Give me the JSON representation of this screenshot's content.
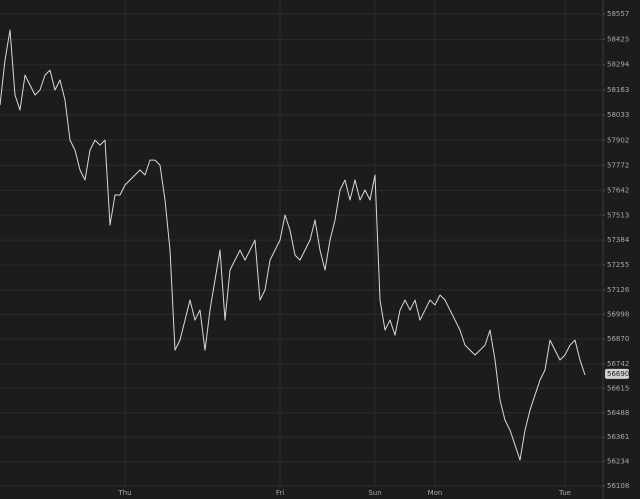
{
  "chart_data": {
    "type": "line",
    "categories": [
      null,
      null,
      null,
      null,
      null,
      null,
      null,
      null,
      null,
      null,
      null,
      null,
      null,
      null,
      null,
      null,
      null,
      null,
      null,
      null,
      null,
      null,
      null,
      null,
      null,
      "Thu",
      null,
      null,
      null,
      null,
      null,
      null,
      null,
      null,
      null,
      null,
      null,
      null,
      null,
      null,
      null,
      null,
      null,
      null,
      null,
      null,
      null,
      null,
      null,
      null,
      null,
      null,
      null,
      null,
      null,
      null,
      "Fri",
      null,
      null,
      null,
      null,
      null,
      null,
      null,
      null,
      null,
      null,
      null,
      null,
      null,
      null,
      null,
      null,
      null,
      null,
      "Sun",
      null,
      null,
      null,
      null,
      null,
      null,
      null,
      null,
      null,
      null,
      null,
      "Mon",
      null,
      null,
      null,
      null,
      null,
      null,
      null,
      null,
      null,
      null,
      null,
      null,
      null,
      null,
      null,
      null,
      null,
      null,
      null,
      null,
      null,
      null,
      null,
      null,
      null,
      "Tue",
      null,
      null,
      null,
      null
    ],
    "series": [
      {
        "color": "#d9d9d9",
        "values": [
          58085,
          58318,
          58474,
          58137,
          58059,
          58240,
          58189,
          58137,
          58163,
          58240,
          58266,
          58163,
          58215,
          58111,
          57903,
          57851,
          57748,
          57696,
          57851,
          57903,
          57877,
          57903,
          57462,
          57618,
          57618,
          57670,
          57696,
          57722,
          57748,
          57722,
          57799,
          57799,
          57773,
          57592,
          57332,
          56813,
          56865,
          56969,
          57073,
          56969,
          57021,
          56813,
          57021,
          57177,
          57332,
          56969,
          57229,
          57280,
          57332,
          57280,
          57332,
          57384,
          57073,
          57125,
          57280,
          57332,
          57384,
          57514,
          57436,
          57306,
          57280,
          57332,
          57384,
          57488,
          57332,
          57229,
          57384,
          57488,
          57644,
          57696,
          57592,
          57696,
          57592,
          57644,
          57592,
          57722,
          57073,
          56917,
          56969,
          56891,
          57021,
          57073,
          57021,
          57073,
          56969,
          57021,
          57073,
          57047,
          57099,
          57073,
          57021,
          56969,
          56917,
          56839,
          56813,
          56788,
          56813,
          56839,
          56917,
          56762,
          56554,
          56450,
          56398,
          56321,
          56243,
          56398,
          56502,
          56580,
          56658,
          56710,
          56865,
          56813,
          56762,
          56788,
          56839,
          56865,
          56762,
          56684
        ]
      }
    ],
    "last_value": 56690,
    "ylim": [
      56108,
      58630
    ],
    "yticks": [
      58557,
      58425,
      58294,
      58163,
      58033,
      57902,
      57772,
      57642,
      57513,
      57384,
      57255,
      57126,
      56998,
      56870,
      56742,
      56615,
      56488,
      56361,
      56234,
      56108
    ],
    "grid": true
  }
}
